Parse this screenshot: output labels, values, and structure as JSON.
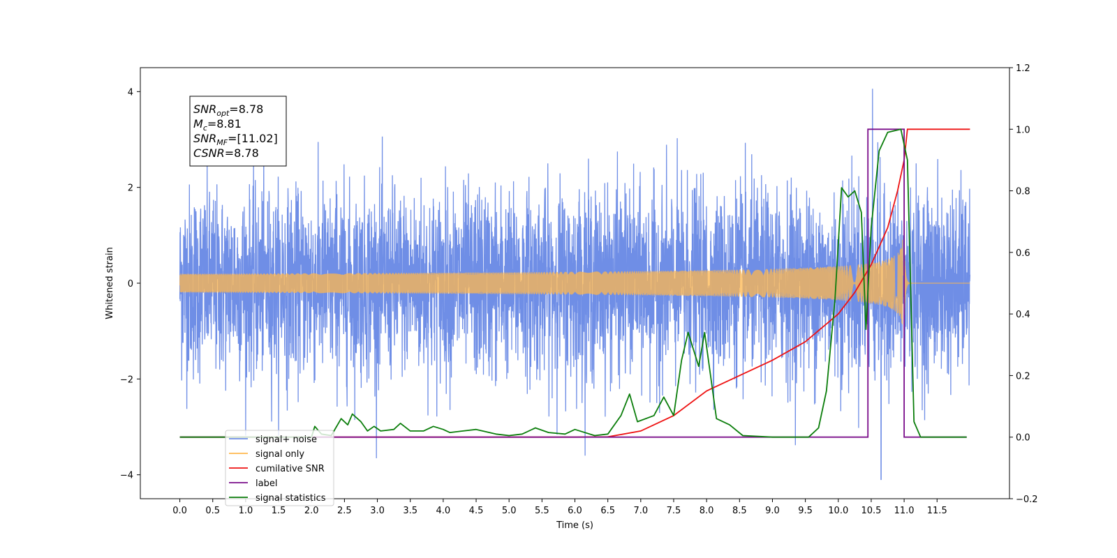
{
  "chart_data": {
    "type": "line",
    "xlabel": "Time (s)",
    "ylabel_left": "Whitened strain",
    "ylabel_right": "",
    "x_range": [
      0,
      12
    ],
    "xlim": [
      -0.6,
      12.6
    ],
    "ylim_left": [
      -4.5,
      4.5
    ],
    "ylim_right": [
      -0.2,
      1.2
    ],
    "x_ticks": [
      0.0,
      0.5,
      1.0,
      1.5,
      2.0,
      2.5,
      3.0,
      3.5,
      4.0,
      4.5,
      5.0,
      5.5,
      6.0,
      6.5,
      7.0,
      7.5,
      8.0,
      8.5,
      9.0,
      9.5,
      10.0,
      10.5,
      11.0,
      11.5
    ],
    "x_tick_labels": [
      "0.0",
      "0.5",
      "1.0",
      "1.5",
      "2.0",
      "2.5",
      "3.0",
      "3.5",
      "4.0",
      "4.5",
      "5.0",
      "5.5",
      "6.0",
      "6.5",
      "7.0",
      "7.5",
      "8.0",
      "8.5",
      "9.0",
      "9.5",
      "10.0",
      "10.5",
      "11.0",
      "11.5"
    ],
    "y_ticks_left": [
      -4,
      -2,
      0,
      2,
      4
    ],
    "y_tick_labels_left": [
      "−4",
      "−2",
      "0",
      "2",
      "4"
    ],
    "y_ticks_right": [
      -0.2,
      0.0,
      0.2,
      0.4,
      0.6,
      0.8,
      1.0,
      1.2
    ],
    "y_tick_labels_right": [
      "−0.2",
      "0.0",
      "0.2",
      "0.4",
      "0.6",
      "0.8",
      "1.0",
      "1.2"
    ],
    "legend_position": "lower-left",
    "series": [
      {
        "name": "signal+ noise",
        "axis": "left",
        "color": "#6f8ee6",
        "description_values": "whitened noise with approximate envelope ±2.5, occasional peaks up to 4.06 near t=10.5 s and down to -4.1 near t=10.65 s"
      },
      {
        "name": "signal only",
        "axis": "left",
        "color": "#ffb74d",
        "chirp": {
          "t_start": 0.0,
          "t_merger": 11.0,
          "t_end": 12.0,
          "peak_amplitude": 0.95
        }
      },
      {
        "name": "cumilative SNR",
        "axis": "right",
        "color": "#ee1111",
        "points": [
          [
            0.0,
            0.0
          ],
          [
            6.0,
            0.0
          ],
          [
            6.5,
            0.001
          ],
          [
            7.0,
            0.02
          ],
          [
            7.5,
            0.07
          ],
          [
            8.0,
            0.15
          ],
          [
            8.5,
            0.2
          ],
          [
            9.0,
            0.25
          ],
          [
            9.5,
            0.31
          ],
          [
            10.0,
            0.4
          ],
          [
            10.25,
            0.47
          ],
          [
            10.5,
            0.56
          ],
          [
            10.75,
            0.68
          ],
          [
            10.9,
            0.8
          ],
          [
            11.0,
            0.9
          ],
          [
            11.05,
            1.0
          ],
          [
            12.0,
            1.0
          ]
        ]
      },
      {
        "name": "label",
        "axis": "right",
        "color": "#7a0d8a",
        "points": [
          [
            0.0,
            0.0
          ],
          [
            10.45,
            0.0
          ],
          [
            10.45,
            1.0
          ],
          [
            11.0,
            1.0
          ],
          [
            11.0,
            0.0
          ],
          [
            11.95,
            0.0
          ]
        ]
      },
      {
        "name": "signal only",
        "axis": "right",
        "color": "#ffffff"
      },
      {
        "name": "signal statistics",
        "axis": "right",
        "color": "#0a7d0a",
        "points": [
          [
            0.0,
            0.0
          ],
          [
            2.0,
            0.0
          ],
          [
            2.05,
            0.035
          ],
          [
            2.15,
            0.01
          ],
          [
            2.3,
            0.005
          ],
          [
            2.45,
            0.06
          ],
          [
            2.55,
            0.04
          ],
          [
            2.62,
            0.075
          ],
          [
            2.75,
            0.05
          ],
          [
            2.85,
            0.02
          ],
          [
            2.95,
            0.035
          ],
          [
            3.05,
            0.02
          ],
          [
            3.25,
            0.025
          ],
          [
            3.35,
            0.045
          ],
          [
            3.5,
            0.02
          ],
          [
            3.7,
            0.02
          ],
          [
            3.85,
            0.035
          ],
          [
            4.0,
            0.025
          ],
          [
            4.1,
            0.015
          ],
          [
            4.3,
            0.02
          ],
          [
            4.5,
            0.025
          ],
          [
            4.8,
            0.01
          ],
          [
            5.0,
            0.005
          ],
          [
            5.2,
            0.01
          ],
          [
            5.4,
            0.03
          ],
          [
            5.6,
            0.015
          ],
          [
            5.85,
            0.01
          ],
          [
            6.0,
            0.025
          ],
          [
            6.3,
            0.005
          ],
          [
            6.5,
            0.01
          ],
          [
            6.7,
            0.07
          ],
          [
            6.83,
            0.14
          ],
          [
            6.95,
            0.05
          ],
          [
            7.2,
            0.07
          ],
          [
            7.35,
            0.13
          ],
          [
            7.5,
            0.07
          ],
          [
            7.62,
            0.25
          ],
          [
            7.72,
            0.34
          ],
          [
            7.88,
            0.23
          ],
          [
            7.97,
            0.34
          ],
          [
            8.15,
            0.06
          ],
          [
            8.35,
            0.04
          ],
          [
            8.55,
            0.005
          ],
          [
            9.0,
            0.0
          ],
          [
            9.55,
            0.0
          ],
          [
            9.7,
            0.03
          ],
          [
            9.82,
            0.15
          ],
          [
            9.95,
            0.45
          ],
          [
            10.05,
            0.81
          ],
          [
            10.15,
            0.78
          ],
          [
            10.25,
            0.8
          ],
          [
            10.35,
            0.73
          ],
          [
            10.42,
            0.35
          ],
          [
            10.5,
            0.68
          ],
          [
            10.62,
            0.93
          ],
          [
            10.75,
            0.99
          ],
          [
            10.95,
            1.0
          ],
          [
            11.05,
            0.9
          ],
          [
            11.15,
            0.05
          ],
          [
            11.25,
            0.0
          ],
          [
            11.95,
            0.0
          ]
        ]
      }
    ],
    "annotations": [
      {
        "name": "SNR_opt",
        "base": "SNR",
        "sub": "opt",
        "value": "=8.78"
      },
      {
        "name": "M_c",
        "base": "M",
        "sub": "c",
        "value": "=8.81"
      },
      {
        "name": "SNR_MF",
        "base": "SNR",
        "sub": "MF",
        "value": "=[11.02]"
      },
      {
        "name": "CSNR",
        "base": "CSNR",
        "sub": "",
        "value": "=8.78"
      }
    ]
  }
}
